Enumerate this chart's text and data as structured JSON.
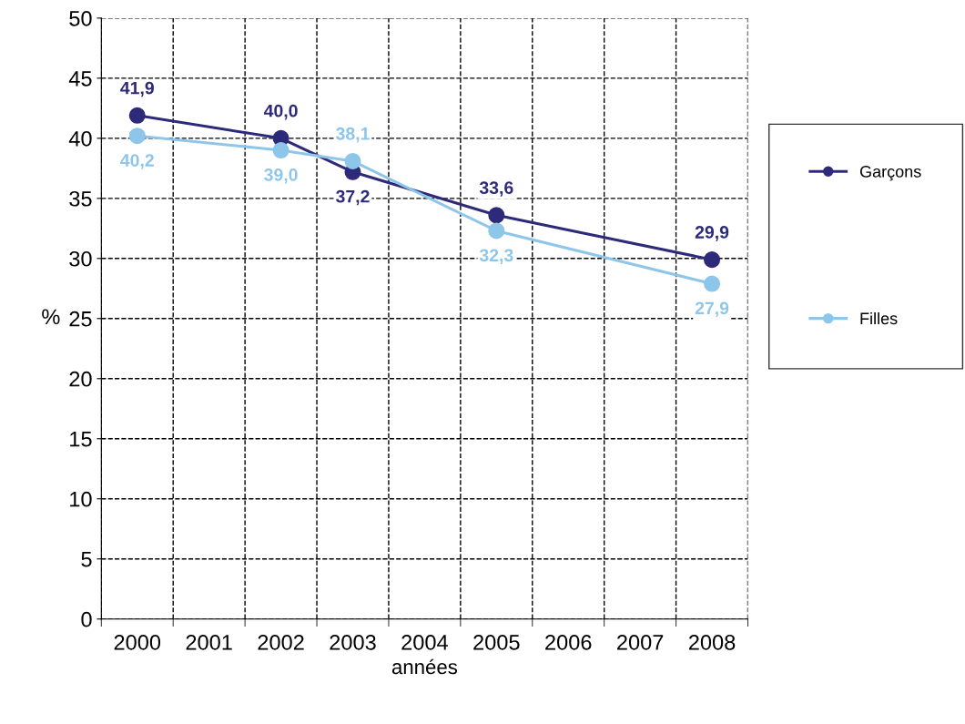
{
  "chart_data": {
    "type": "line",
    "xlabel": "années",
    "ylabel": "%",
    "categories": [
      "2000",
      "2001",
      "2002",
      "2003",
      "2004",
      "2005",
      "2006",
      "2007",
      "2008"
    ],
    "series": [
      {
        "name": "Garçons",
        "color": "#2e2a7a",
        "values": [
          41.9,
          null,
          40.0,
          37.2,
          null,
          33.6,
          null,
          null,
          29.9
        ],
        "value_labels": [
          "41,9",
          null,
          "40,0",
          "37,2",
          null,
          "33,6",
          null,
          null,
          "29,9"
        ]
      },
      {
        "name": "Filles",
        "color": "#8ec6ea",
        "values": [
          40.2,
          null,
          39.0,
          38.1,
          null,
          32.3,
          null,
          null,
          27.9
        ],
        "value_labels": [
          "40,2",
          null,
          "39,0",
          "38,1",
          null,
          "32,3",
          null,
          null,
          "27,9"
        ]
      }
    ],
    "ylim": [
      0,
      50
    ],
    "yticks": [
      0,
      5,
      10,
      15,
      20,
      25,
      30,
      35,
      40,
      45,
      50
    ],
    "grid": true,
    "legend": "right",
    "marker": "circle",
    "line_style": "solid"
  }
}
